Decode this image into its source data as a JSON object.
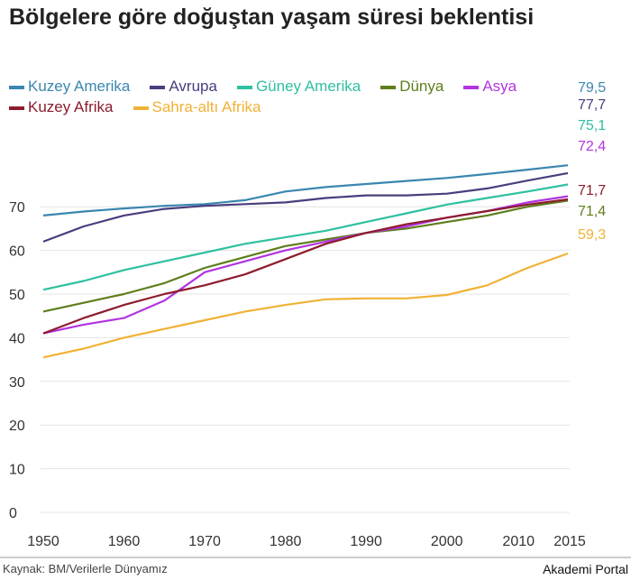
{
  "title": "Bölgelere göre doğuştan yaşam süresi beklentisi",
  "source": "Kaynak: BM/Verilerle Dünyamız",
  "brand": "Akademi Portal",
  "chart_data": {
    "type": "line",
    "title": "Bölgelere göre doğuştan yaşam süresi beklentisi",
    "xlabel": "",
    "ylabel": "",
    "x": [
      1950,
      1955,
      1960,
      1965,
      1970,
      1975,
      1980,
      1985,
      1990,
      1995,
      2000,
      2005,
      2010,
      2015
    ],
    "x_ticks": [
      "1950",
      "1960",
      "1970",
      "1980",
      "1990",
      "2000",
      "2010",
      "2015"
    ],
    "y_ticks": [
      "0",
      "10",
      "20",
      "30",
      "40",
      "50",
      "60",
      "70"
    ],
    "ylim": [
      0,
      80
    ],
    "grid": "horizontal",
    "legend": "top",
    "series": [
      {
        "name": "Kuzey Amerika",
        "color": "#3a86b0",
        "end_label": "79,5",
        "values": [
          68,
          68.9,
          69.6,
          70.2,
          70.6,
          71.5,
          73.5,
          74.5,
          75.2,
          75.9,
          76.6,
          77.5,
          78.5,
          79.5
        ]
      },
      {
        "name": "Avrupa",
        "color": "#4b3d7d",
        "end_label": "77,7",
        "values": [
          62,
          65.5,
          68,
          69.5,
          70.2,
          70.6,
          71,
          72,
          72.6,
          72.6,
          73,
          74.2,
          76,
          77.7
        ]
      },
      {
        "name": "Güney Amerika",
        "color": "#2fc0a0",
        "end_label": "75,1",
        "values": [
          51,
          53,
          55.5,
          57.5,
          59.5,
          61.5,
          63,
          64.5,
          66.5,
          68.5,
          70.5,
          72,
          73.5,
          75.1
        ]
      },
      {
        "name": "Dünya",
        "color": "#5e7e1c",
        "end_label": "71,4",
        "values": [
          46,
          48,
          50,
          52.5,
          56,
          58.5,
          61,
          62.5,
          64,
          65,
          66.5,
          68,
          70,
          71.4
        ]
      },
      {
        "name": "Asya",
        "color": "#b234e0",
        "end_label": "72,4",
        "values": [
          41,
          43,
          44.5,
          48.5,
          55,
          57.5,
          60,
          62,
          64,
          65.5,
          67.5,
          69,
          71,
          72.4
        ]
      },
      {
        "name": "Kuzey Afrika",
        "color": "#8c1c2c",
        "end_label": "71,7",
        "values": [
          41,
          44.5,
          47.5,
          50,
          52,
          54.5,
          58,
          61.5,
          64,
          66,
          67.5,
          69,
          70.5,
          71.7
        ]
      },
      {
        "name": "Sahra-altı Afrika",
        "color": "#f0b235",
        "end_label": "59,3",
        "values": [
          35.5,
          37.5,
          40,
          42,
          44,
          46,
          47.5,
          48.8,
          49,
          49,
          49.8,
          52,
          56,
          59.3
        ]
      }
    ]
  }
}
